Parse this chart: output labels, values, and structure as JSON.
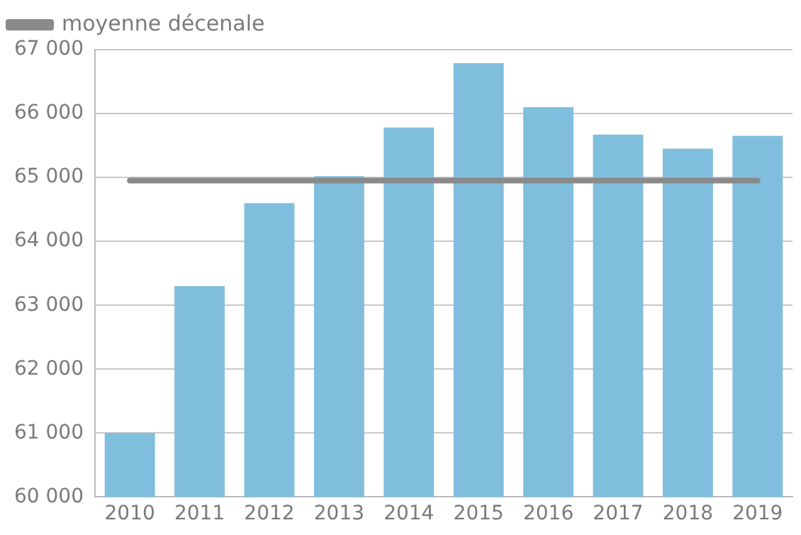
{
  "chart_data": {
    "type": "bar",
    "categories": [
      "2010",
      "2011",
      "2012",
      "2013",
      "2014",
      "2015",
      "2016",
      "2017",
      "2018",
      "2019"
    ],
    "series": [
      {
        "color": "#80bedd",
        "values": [
          61000,
          63300,
          64600,
          65020,
          65780,
          66790,
          66100,
          65670,
          65450,
          65650
        ]
      },
      {
        "type": "line",
        "name": "moyenne décenale",
        "color": "#8a8a8a",
        "values": [
          64950,
          64950,
          64950,
          64950,
          64950,
          64950,
          64950,
          64950,
          64950,
          64950
        ]
      }
    ],
    "ylim": [
      60000,
      67000
    ],
    "yticks": [
      {
        "value": 60000,
        "label": "60 000"
      },
      {
        "value": 61000,
        "label": "61 000"
      },
      {
        "value": 62000,
        "label": "62 000"
      },
      {
        "value": 63000,
        "label": "63 000"
      },
      {
        "value": 64000,
        "label": "64 000"
      },
      {
        "value": 65000,
        "label": "65 000"
      },
      {
        "value": 66000,
        "label": "66 000"
      },
      {
        "value": 67000,
        "label": "67 000"
      }
    ],
    "grid": "y",
    "legend": "top left",
    "marker": "none"
  }
}
